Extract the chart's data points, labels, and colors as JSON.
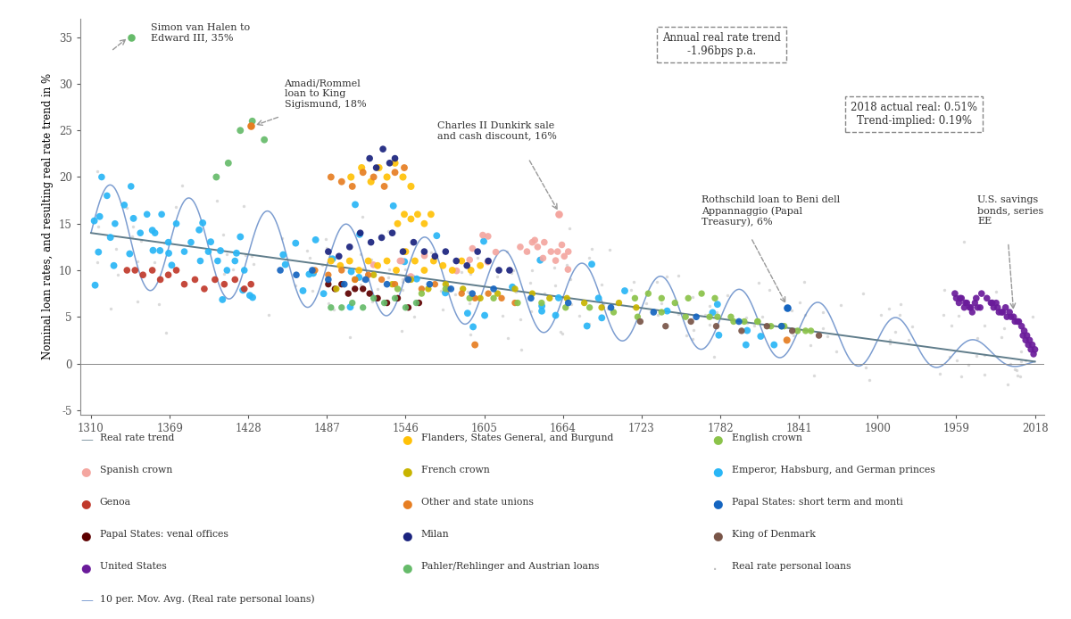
{
  "ylabel": "Nominal loan rates, and resulting real rate trend in %",
  "xlabel_ticks": [
    1310,
    1369,
    1428,
    1487,
    1546,
    1605,
    1664,
    1723,
    1782,
    1841,
    1900,
    1959,
    2018
  ],
  "ylim": [
    -5.5,
    37
  ],
  "xlim": [
    1302,
    2025
  ],
  "annotation_box1": "Annual real rate trend\n-1.96bps p.a.",
  "annotation_box2": "2018 actual real: 0.51%\nTrend-implied: 0.19%",
  "ann1_text": "Simon van Halen to\nEdward III, 35%",
  "ann2_text": "Amadi/Rommel\nloan to King\nSigismund, 18%",
  "ann3_text": "Charles II Dunkirk sale\nand cash discount, 16%",
  "ann4_text": "Rothschild loan to Beni dell\nAppannaggio (Papal\nTreasury), 6%",
  "ann5_text": "U.S. savings\nbonds, series\nEE",
  "trend_x": [
    1310,
    2018
  ],
  "trend_y": [
    14.0,
    0.2
  ],
  "colors": {
    "Spanish crown": "#F4A6A0",
    "Genoa": "#C0392B",
    "Papal States venal": "#5D0000",
    "United States": "#6A1B9A",
    "Flanders": "#FFC107",
    "French crown": "#C8B400",
    "Other state unions": "#E67E22",
    "Milan": "#1A237E",
    "Pahler Austrian": "#66BB6A",
    "English crown": "#8BC34A",
    "Emperor Habsburg": "#29B6F6",
    "Papal States short": "#1565C0",
    "King Denmark": "#795548",
    "Real rate personal": "#BDBDBD",
    "trend": "#607D8B",
    "moving_avg": "#5C85C5"
  }
}
